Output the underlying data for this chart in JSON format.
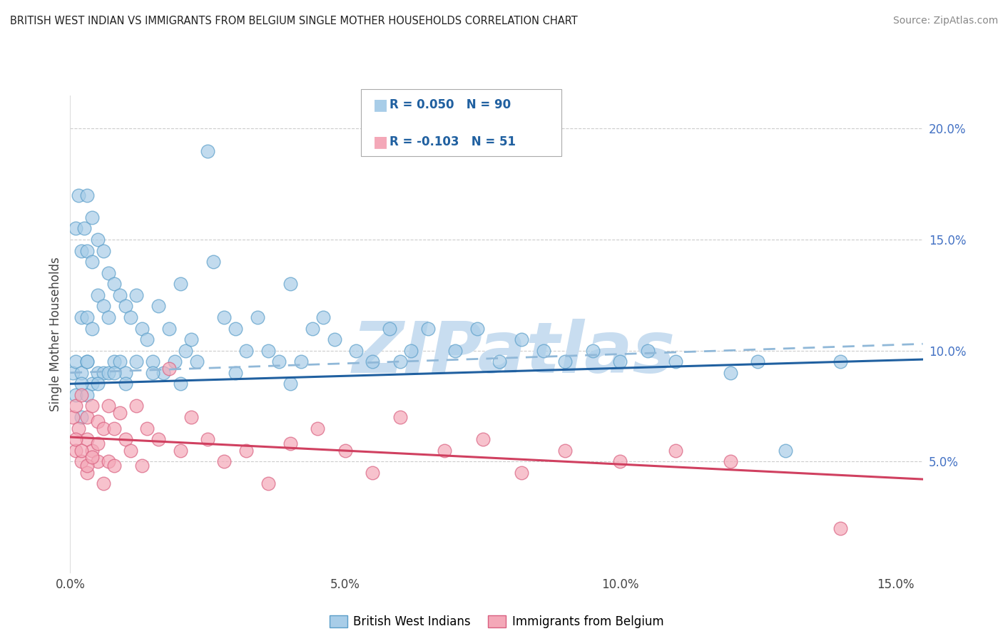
{
  "title": "BRITISH WEST INDIAN VS IMMIGRANTS FROM BELGIUM SINGLE MOTHER HOUSEHOLDS CORRELATION CHART",
  "source": "Source: ZipAtlas.com",
  "ylabel": "Single Mother Households",
  "xlim": [
    0.0,
    0.155
  ],
  "ylim": [
    0.0,
    0.215
  ],
  "xticks": [
    0.0,
    0.05,
    0.1,
    0.15
  ],
  "yticks": [
    0.05,
    0.1,
    0.15,
    0.2
  ],
  "ytick_labels": [
    "5.0%",
    "10.0%",
    "15.0%",
    "20.0%"
  ],
  "xtick_labels": [
    "0.0%",
    "5.0%",
    "10.0%",
    "15.0%"
  ],
  "blue_R": 0.05,
  "blue_N": 90,
  "pink_R": -0.103,
  "pink_N": 51,
  "blue_color": "#a8cde8",
  "pink_color": "#f4a8b8",
  "blue_edge_color": "#5a9ec9",
  "pink_edge_color": "#d96080",
  "blue_line_color": "#2060a0",
  "pink_line_color": "#d04060",
  "dashed_line_color": "#90b8d8",
  "watermark": "ZIPatlas",
  "watermark_color": "#c8ddf0",
  "legend_R_color": "#2060a0",
  "legend_N_color": "#e03050",
  "blue_line_x0": 0.0,
  "blue_line_y0": 0.085,
  "blue_line_x1": 0.155,
  "blue_line_y1": 0.096,
  "pink_line_x0": 0.0,
  "pink_line_y0": 0.061,
  "pink_line_x1": 0.155,
  "pink_line_y1": 0.042,
  "dash_line_x0": 0.0,
  "dash_line_y0": 0.09,
  "dash_line_x1": 0.155,
  "dash_line_y1": 0.103,
  "blue_scatter_x": [
    0.0005,
    0.001,
    0.001,
    0.001,
    0.0015,
    0.002,
    0.002,
    0.002,
    0.002,
    0.0025,
    0.003,
    0.003,
    0.003,
    0.003,
    0.003,
    0.004,
    0.004,
    0.004,
    0.004,
    0.005,
    0.005,
    0.005,
    0.006,
    0.006,
    0.006,
    0.007,
    0.007,
    0.007,
    0.008,
    0.008,
    0.009,
    0.009,
    0.01,
    0.01,
    0.011,
    0.012,
    0.012,
    0.013,
    0.014,
    0.015,
    0.016,
    0.017,
    0.018,
    0.019,
    0.02,
    0.021,
    0.022,
    0.023,
    0.025,
    0.026,
    0.028,
    0.03,
    0.032,
    0.034,
    0.036,
    0.038,
    0.04,
    0.042,
    0.044,
    0.046,
    0.048,
    0.052,
    0.055,
    0.058,
    0.062,
    0.065,
    0.07,
    0.074,
    0.078,
    0.082,
    0.086,
    0.09,
    0.095,
    0.1,
    0.105,
    0.11,
    0.12,
    0.125,
    0.13,
    0.14,
    0.002,
    0.003,
    0.005,
    0.008,
    0.01,
    0.015,
    0.02,
    0.03,
    0.04,
    0.06
  ],
  "blue_scatter_y": [
    0.09,
    0.155,
    0.095,
    0.08,
    0.17,
    0.145,
    0.115,
    0.09,
    0.07,
    0.155,
    0.17,
    0.145,
    0.115,
    0.095,
    0.08,
    0.16,
    0.14,
    0.11,
    0.085,
    0.15,
    0.125,
    0.09,
    0.145,
    0.12,
    0.09,
    0.135,
    0.115,
    0.09,
    0.13,
    0.095,
    0.125,
    0.095,
    0.12,
    0.09,
    0.115,
    0.125,
    0.095,
    0.11,
    0.105,
    0.095,
    0.12,
    0.09,
    0.11,
    0.095,
    0.13,
    0.1,
    0.105,
    0.095,
    0.19,
    0.14,
    0.115,
    0.11,
    0.1,
    0.115,
    0.1,
    0.095,
    0.13,
    0.095,
    0.11,
    0.115,
    0.105,
    0.1,
    0.095,
    0.11,
    0.1,
    0.11,
    0.1,
    0.11,
    0.095,
    0.105,
    0.1,
    0.095,
    0.1,
    0.095,
    0.1,
    0.095,
    0.09,
    0.095,
    0.055,
    0.095,
    0.085,
    0.095,
    0.085,
    0.09,
    0.085,
    0.09,
    0.085,
    0.09,
    0.085,
    0.095
  ],
  "pink_scatter_x": [
    0.0005,
    0.001,
    0.001,
    0.0015,
    0.002,
    0.002,
    0.003,
    0.003,
    0.003,
    0.004,
    0.004,
    0.005,
    0.005,
    0.006,
    0.006,
    0.007,
    0.007,
    0.008,
    0.008,
    0.009,
    0.01,
    0.011,
    0.012,
    0.013,
    0.014,
    0.016,
    0.018,
    0.02,
    0.022,
    0.025,
    0.028,
    0.032,
    0.036,
    0.04,
    0.045,
    0.05,
    0.055,
    0.06,
    0.068,
    0.075,
    0.082,
    0.09,
    0.1,
    0.11,
    0.12,
    0.14,
    0.001,
    0.002,
    0.003,
    0.004,
    0.005
  ],
  "pink_scatter_y": [
    0.07,
    0.075,
    0.055,
    0.065,
    0.08,
    0.05,
    0.07,
    0.06,
    0.045,
    0.075,
    0.055,
    0.068,
    0.05,
    0.065,
    0.04,
    0.075,
    0.05,
    0.065,
    0.048,
    0.072,
    0.06,
    0.055,
    0.075,
    0.048,
    0.065,
    0.06,
    0.092,
    0.055,
    0.07,
    0.06,
    0.05,
    0.055,
    0.04,
    0.058,
    0.065,
    0.055,
    0.045,
    0.07,
    0.055,
    0.06,
    0.045,
    0.055,
    0.05,
    0.055,
    0.05,
    0.02,
    0.06,
    0.055,
    0.048,
    0.052,
    0.058
  ]
}
